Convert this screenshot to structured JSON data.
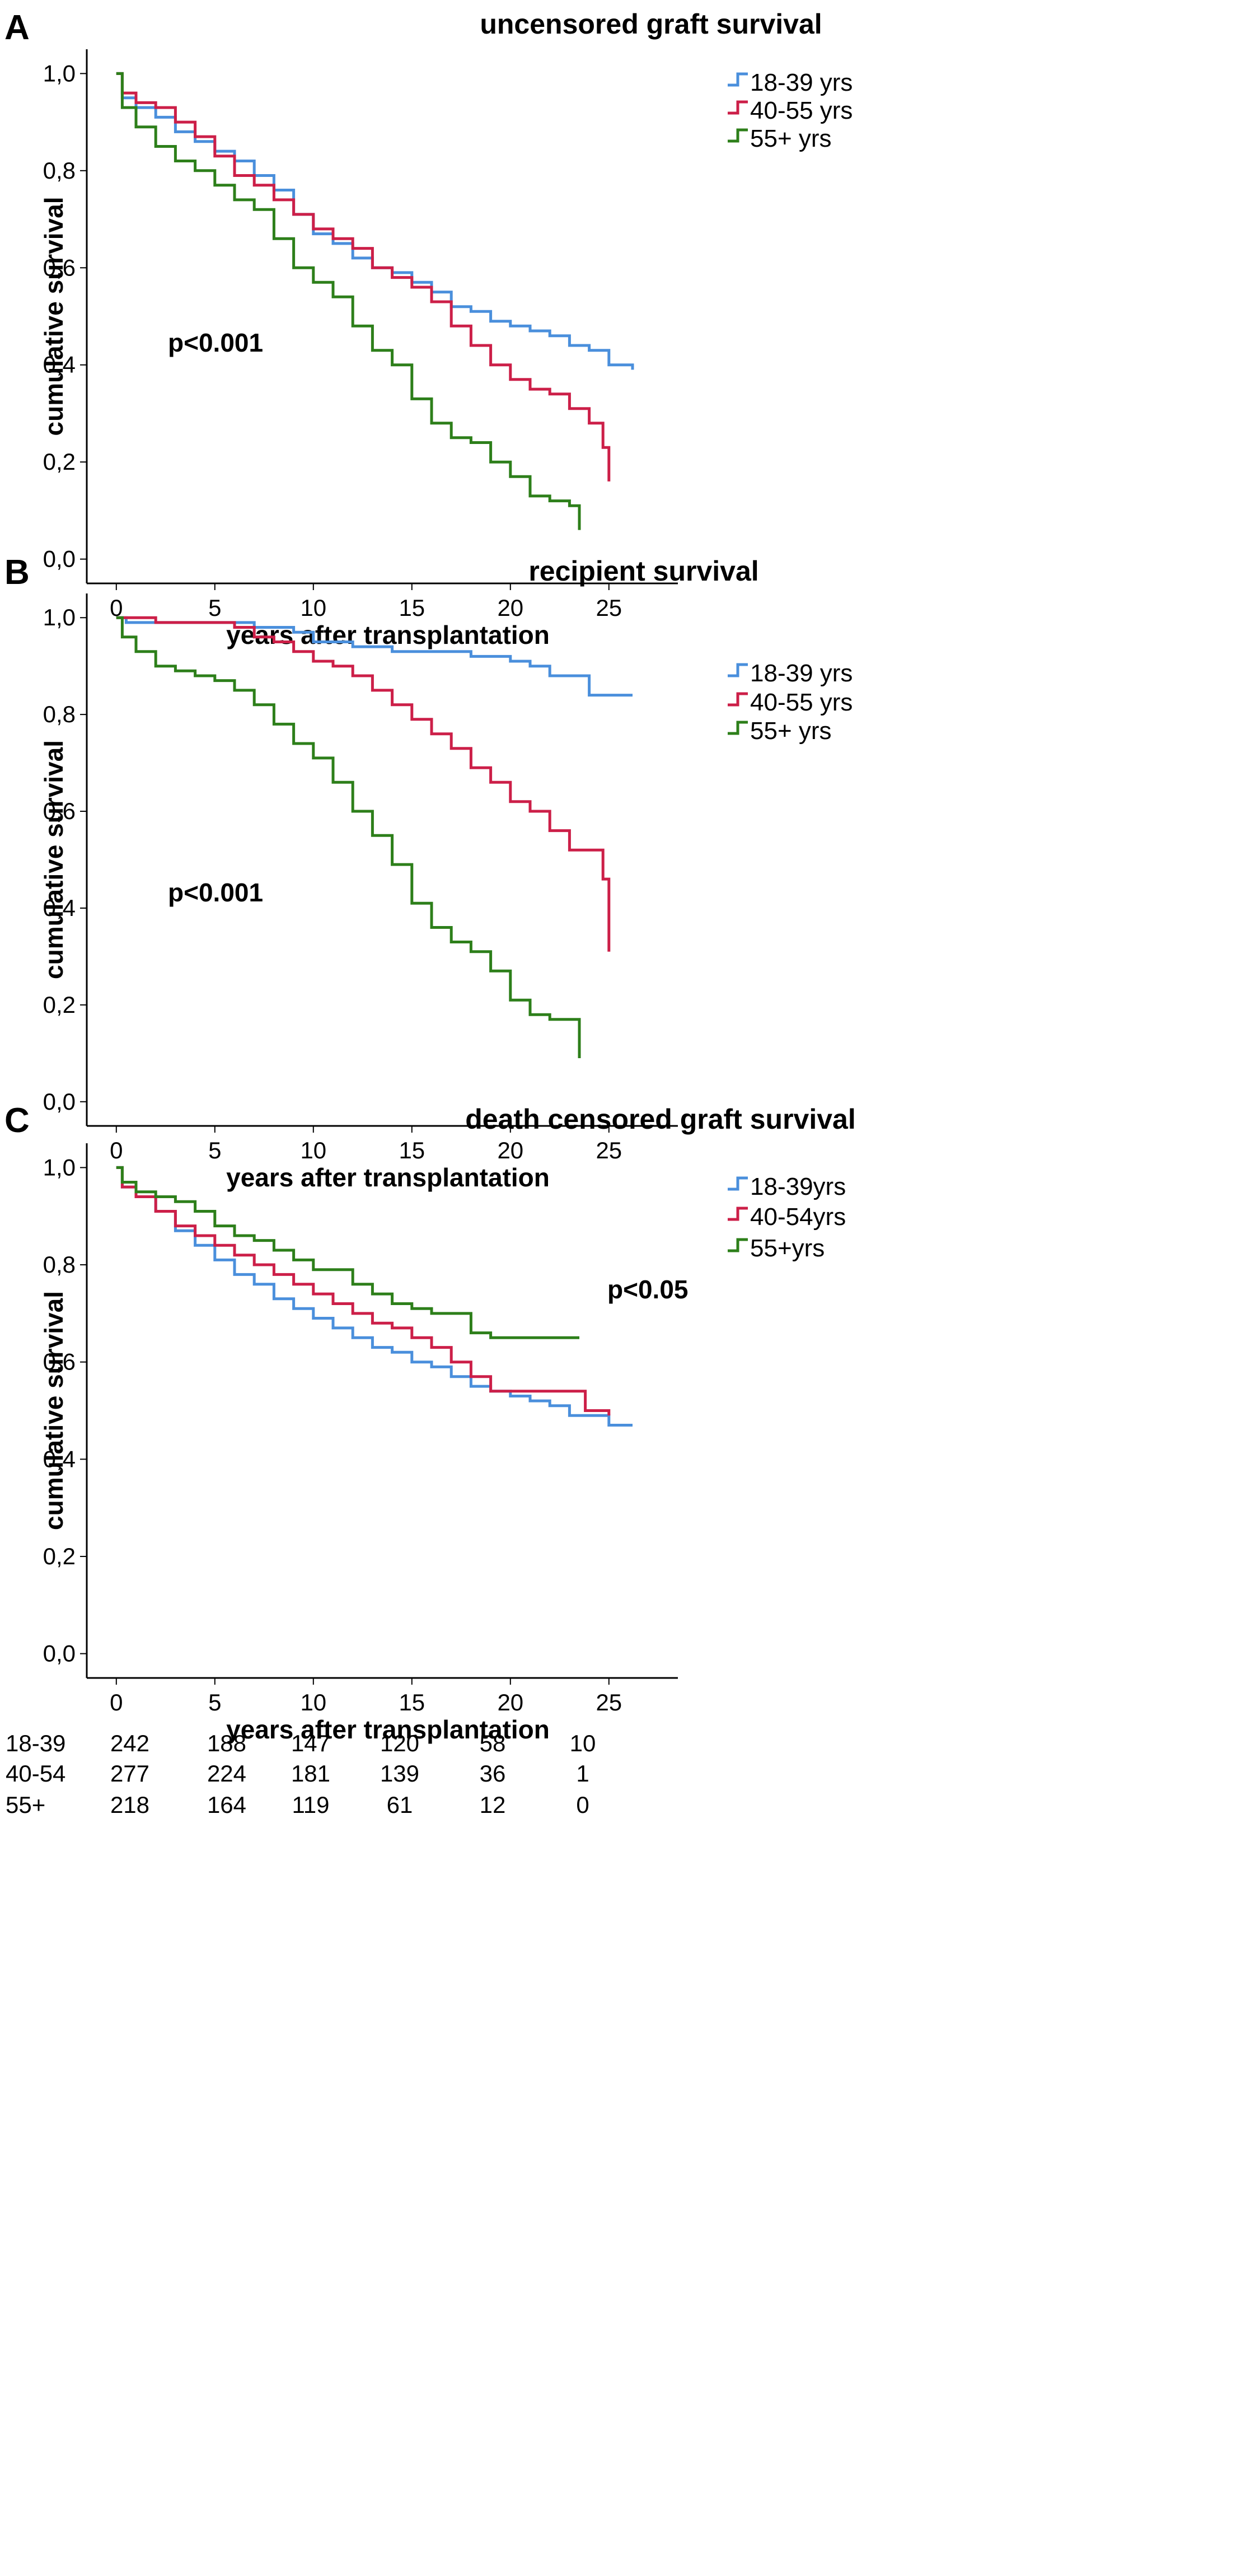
{
  "chart_data": [
    {
      "panel": "A",
      "type": "line",
      "title": "uncensored graft survival",
      "xlabel": "years after transplantation",
      "ylabel": "cumulative survival",
      "xlim": [
        -1.5,
        28.5
      ],
      "ylim": [
        -0.05,
        1.05
      ],
      "xticks": [
        "0",
        "5",
        "10",
        "15",
        "20",
        "25"
      ],
      "yticks": [
        "1,0",
        "0,8",
        "0,6",
        "0,4",
        "0,2",
        "0,0"
      ],
      "annotation": "p<0.001",
      "legend_position": "right",
      "series": [
        {
          "name": "18-39 yrs",
          "color": "#4a8fdc",
          "x": [
            0,
            0.3,
            1,
            2,
            3,
            4,
            5,
            6,
            7,
            8,
            9,
            10,
            11,
            12,
            13,
            14,
            15,
            16,
            17,
            18,
            19,
            20,
            21,
            22,
            23,
            24,
            25,
            26.2
          ],
          "y": [
            1.0,
            0.95,
            0.93,
            0.91,
            0.88,
            0.86,
            0.84,
            0.82,
            0.79,
            0.76,
            0.71,
            0.67,
            0.65,
            0.62,
            0.6,
            0.59,
            0.57,
            0.55,
            0.52,
            0.51,
            0.49,
            0.48,
            0.47,
            0.46,
            0.44,
            0.43,
            0.4,
            0.39
          ]
        },
        {
          "name": "40-55 yrs",
          "color": "#cc1f48",
          "x": [
            0,
            0.3,
            1,
            2,
            3,
            4,
            5,
            6,
            7,
            8,
            9,
            10,
            11,
            12,
            13,
            14,
            15,
            16,
            17,
            18,
            19,
            20,
            21,
            22,
            23,
            24,
            24.7,
            25
          ],
          "y": [
            1.0,
            0.96,
            0.94,
            0.93,
            0.9,
            0.87,
            0.83,
            0.79,
            0.77,
            0.74,
            0.71,
            0.68,
            0.66,
            0.64,
            0.6,
            0.58,
            0.56,
            0.53,
            0.48,
            0.44,
            0.4,
            0.37,
            0.35,
            0.34,
            0.31,
            0.28,
            0.23,
            0.16
          ]
        },
        {
          "name": "55+ yrs",
          "color": "#2d7f1a",
          "x": [
            0,
            0.3,
            1,
            2,
            3,
            4,
            5,
            6,
            7,
            8,
            9,
            10,
            11,
            12,
            13,
            14,
            15,
            16,
            17,
            18,
            19,
            20,
            21,
            22,
            23,
            23.5
          ],
          "y": [
            1.0,
            0.93,
            0.89,
            0.85,
            0.82,
            0.8,
            0.77,
            0.74,
            0.72,
            0.66,
            0.6,
            0.57,
            0.54,
            0.48,
            0.43,
            0.4,
            0.33,
            0.28,
            0.25,
            0.24,
            0.2,
            0.17,
            0.13,
            0.12,
            0.11,
            0.06
          ]
        }
      ]
    },
    {
      "panel": "B",
      "type": "line",
      "title": "recipient survival",
      "xlabel": "years after transplantation",
      "ylabel": "cumulative survival",
      "xlim": [
        -1.5,
        28.5
      ],
      "ylim": [
        -0.05,
        1.05
      ],
      "xticks": [
        "0",
        "5",
        "10",
        "15",
        "20",
        "25"
      ],
      "yticks": [
        "1,0",
        "0,8",
        "0,6",
        "0,4",
        "0,2",
        "0,0"
      ],
      "annotation": "p<0.001",
      "legend_position": "right",
      "series": [
        {
          "name": "18-39 yrs",
          "color": "#4a8fdc",
          "x": [
            0,
            0.5,
            2,
            5,
            7,
            9,
            10,
            12,
            14,
            16,
            18,
            20,
            21,
            22,
            24,
            26.2
          ],
          "y": [
            1.0,
            0.99,
            0.99,
            0.99,
            0.98,
            0.97,
            0.95,
            0.94,
            0.93,
            0.93,
            0.92,
            0.91,
            0.9,
            0.88,
            0.84,
            0.84
          ]
        },
        {
          "name": "40-55 yrs",
          "color": "#cc1f48",
          "x": [
            0,
            0.5,
            2,
            4,
            6,
            7,
            8,
            9,
            10,
            11,
            12,
            13,
            14,
            15,
            16,
            17,
            18,
            19,
            20,
            21,
            22,
            23,
            24,
            24.7,
            25
          ],
          "y": [
            1.0,
            1.0,
            0.99,
            0.99,
            0.98,
            0.96,
            0.95,
            0.93,
            0.91,
            0.9,
            0.88,
            0.85,
            0.82,
            0.79,
            0.76,
            0.73,
            0.69,
            0.66,
            0.62,
            0.6,
            0.56,
            0.52,
            0.52,
            0.46,
            0.31
          ]
        },
        {
          "name": "55+ yrs",
          "color": "#2d7f1a",
          "x": [
            0,
            0.3,
            1,
            2,
            3,
            4,
            5,
            6,
            7,
            8,
            9,
            10,
            11,
            12,
            13,
            14,
            15,
            16,
            17,
            18,
            19,
            20,
            21,
            22,
            23,
            23.5
          ],
          "y": [
            1.0,
            0.96,
            0.93,
            0.9,
            0.89,
            0.88,
            0.87,
            0.85,
            0.82,
            0.78,
            0.74,
            0.71,
            0.66,
            0.6,
            0.55,
            0.49,
            0.41,
            0.36,
            0.33,
            0.31,
            0.27,
            0.21,
            0.18,
            0.17,
            0.17,
            0.09
          ]
        }
      ]
    },
    {
      "panel": "C",
      "type": "line",
      "title": "death censored graft survival",
      "xlabel": "years after transplantation",
      "ylabel": "cumulative survival",
      "xlim": [
        -1.5,
        28.5
      ],
      "ylim": [
        -0.05,
        1.05
      ],
      "xticks": [
        "0",
        "5",
        "10",
        "15",
        "20",
        "25"
      ],
      "yticks": [
        "1,0",
        "0,8",
        "0,6",
        "0,4",
        "0,2",
        "0,0"
      ],
      "annotation": "p<0.05",
      "legend_position": "right",
      "series": [
        {
          "name": "18-39yrs",
          "color": "#4a8fdc",
          "x": [
            0,
            0.3,
            1,
            2,
            3,
            4,
            5,
            6,
            7,
            8,
            9,
            10,
            11,
            12,
            13,
            14,
            15,
            16,
            17,
            18,
            19,
            20,
            21,
            22,
            23,
            24,
            25,
            26.2
          ],
          "y": [
            1.0,
            0.96,
            0.94,
            0.91,
            0.87,
            0.84,
            0.81,
            0.78,
            0.76,
            0.73,
            0.71,
            0.69,
            0.67,
            0.65,
            0.63,
            0.62,
            0.6,
            0.59,
            0.57,
            0.55,
            0.54,
            0.53,
            0.52,
            0.51,
            0.49,
            0.49,
            0.47,
            0.47
          ]
        },
        {
          "name": "40-54yrs",
          "color": "#cc1f48",
          "x": [
            0,
            0.3,
            1,
            2,
            3,
            4,
            5,
            6,
            7,
            8,
            9,
            10,
            11,
            12,
            13,
            14,
            15,
            16,
            17,
            18,
            19,
            20,
            22,
            23.8,
            25
          ],
          "y": [
            1.0,
            0.96,
            0.94,
            0.91,
            0.88,
            0.86,
            0.84,
            0.82,
            0.8,
            0.78,
            0.76,
            0.74,
            0.72,
            0.7,
            0.68,
            0.67,
            0.65,
            0.63,
            0.6,
            0.57,
            0.54,
            0.54,
            0.54,
            0.5,
            0.49
          ]
        },
        {
          "name": "55+yrs",
          "color": "#2d7f1a",
          "x": [
            0,
            0.3,
            1,
            2,
            3,
            4,
            5,
            6,
            7,
            8,
            9,
            10,
            11,
            12,
            13,
            14,
            15,
            16,
            17,
            18,
            19,
            20,
            21,
            22,
            23,
            23.5
          ],
          "y": [
            1.0,
            0.97,
            0.95,
            0.94,
            0.93,
            0.91,
            0.88,
            0.86,
            0.85,
            0.83,
            0.81,
            0.79,
            0.79,
            0.76,
            0.74,
            0.72,
            0.71,
            0.7,
            0.7,
            0.66,
            0.65,
            0.65,
            0.65,
            0.65,
            0.65,
            0.65
          ]
        }
      ]
    }
  ],
  "risk_table": {
    "columns": [
      "0",
      "5",
      "10",
      "15",
      "20",
      "25"
    ],
    "rows": [
      {
        "label": "18-39",
        "values": [
          "242",
          "188",
          "147",
          "120",
          "58",
          "10"
        ]
      },
      {
        "label": "40-54",
        "values": [
          "277",
          "224",
          "181",
          "139",
          "36",
          "1"
        ]
      },
      {
        "label": "55+",
        "values": [
          "218",
          "164",
          "119",
          "61",
          "12",
          "0"
        ]
      }
    ]
  }
}
